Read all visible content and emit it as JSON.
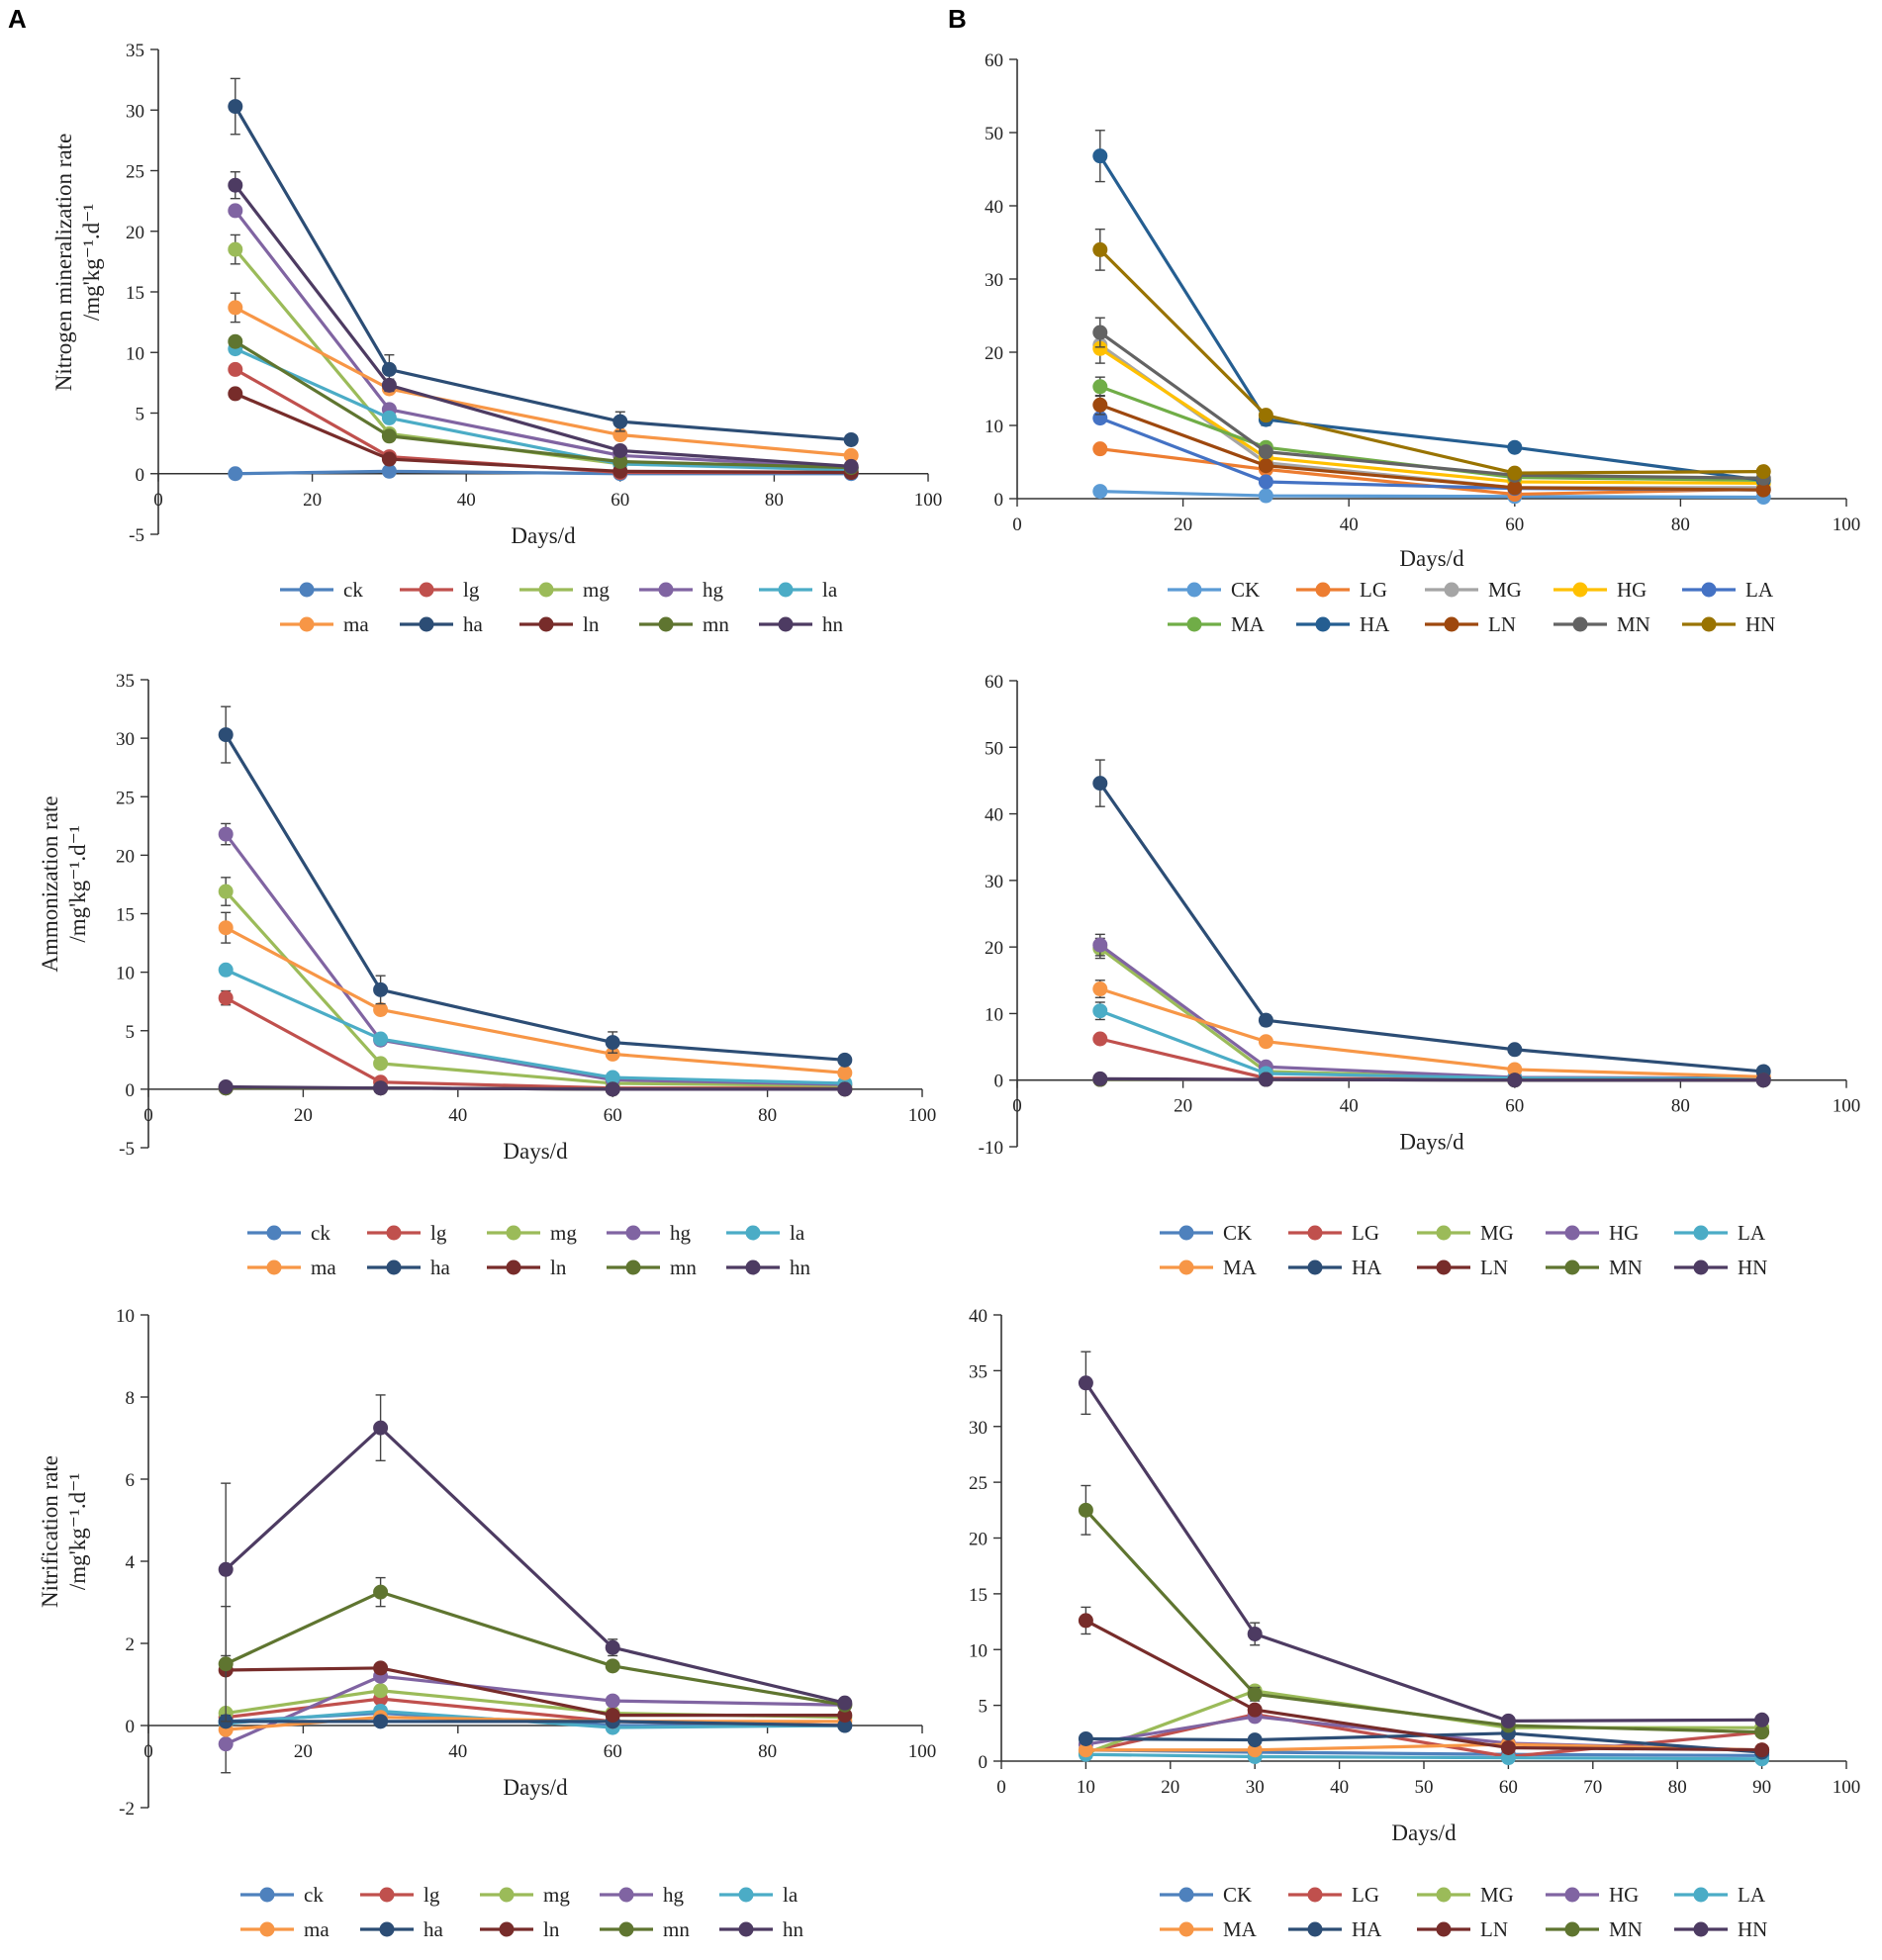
{
  "panel_labels": {
    "A": "A",
    "B": "B"
  },
  "colors": {
    "ck": "#4E81BD",
    "lg": "#C0504D",
    "mg": "#9BBB59",
    "hg": "#8064A2",
    "la": "#4BACC6",
    "ma": "#F79646",
    "ha": "#2C4D75",
    "ln": "#772C2A",
    "mn": "#5F7530",
    "hn": "#4D3B62",
    "CK_b1": "#5B9BD5",
    "LG_b1": "#ED7D31",
    "MG_b1": "#A5A5A5",
    "HG_b1": "#FFC000",
    "LA_b1": "#4472C4",
    "MA_b1": "#70AD47",
    "HA_b1": "#255E91",
    "LN_b1": "#9E480E",
    "MN_b1": "#636363",
    "HN_b1": "#997300"
  },
  "chart_data": [
    {
      "id": "A1",
      "type": "line",
      "ylabel_lines": [
        "Nitrogen mineralization rate",
        "/mg'kg⁻¹.d⁻¹"
      ],
      "xlabel": "Days/d",
      "xlim": [
        0,
        100
      ],
      "xticks": [
        0,
        20,
        40,
        60,
        80,
        100
      ],
      "ylim": [
        -5,
        35
      ],
      "yticks": [
        -5,
        0,
        5,
        10,
        15,
        20,
        25,
        30,
        35
      ],
      "x": [
        10,
        30,
        60,
        90
      ],
      "legend_rows": [
        [
          "ck",
          "lg",
          "mg",
          "hg",
          "la"
        ],
        [
          "ma",
          "ha",
          "ln",
          "mn",
          "hn"
        ]
      ],
      "series": [
        {
          "name": "ck",
          "color_key": "ck",
          "values": [
            0.0,
            0.2,
            0.0,
            0.0
          ]
        },
        {
          "name": "lg",
          "color_key": "lg",
          "values": [
            8.6,
            1.4,
            0.1,
            0.1
          ]
        },
        {
          "name": "mg",
          "color_key": "mg",
          "values": [
            18.5,
            3.3,
            0.8,
            0.4
          ],
          "err": [
            1.2,
            0.4,
            0,
            0
          ]
        },
        {
          "name": "hg",
          "color_key": "hg",
          "values": [
            21.7,
            5.3,
            1.5,
            0.5
          ]
        },
        {
          "name": "la",
          "color_key": "la",
          "values": [
            10.3,
            4.6,
            0.8,
            0.3
          ]
        },
        {
          "name": "ma",
          "color_key": "ma",
          "values": [
            13.7,
            7.0,
            3.2,
            1.5
          ],
          "err": [
            1.2,
            0,
            0,
            0
          ]
        },
        {
          "name": "ha",
          "color_key": "ha",
          "values": [
            30.3,
            8.6,
            4.3,
            2.8
          ],
          "err": [
            2.3,
            1.2,
            0.8,
            0
          ]
        },
        {
          "name": "ln",
          "color_key": "ln",
          "values": [
            6.6,
            1.2,
            0.2,
            0.1
          ]
        },
        {
          "name": "mn",
          "color_key": "mn",
          "values": [
            10.9,
            3.1,
            1.0,
            0.5
          ]
        },
        {
          "name": "hn",
          "color_key": "hn",
          "values": [
            23.8,
            7.3,
            1.9,
            0.6
          ],
          "err": [
            1.1,
            0.5,
            0,
            0
          ]
        }
      ]
    },
    {
      "id": "B1",
      "type": "line",
      "ylabel_lines": [],
      "xlabel": "Days/d",
      "xlim": [
        0,
        100
      ],
      "xticks": [
        0,
        20,
        40,
        60,
        80,
        100
      ],
      "ylim": [
        0,
        60
      ],
      "yticks": [
        0,
        10,
        20,
        30,
        40,
        50,
        60
      ],
      "x": [
        10,
        30,
        60,
        90
      ],
      "legend_rows": [
        [
          "CK",
          "LG",
          "MG",
          "HG",
          "LA"
        ],
        [
          "MA",
          "HA",
          "LN",
          "MN",
          "HN"
        ]
      ],
      "series": [
        {
          "name": "CK",
          "color_key": "CK_b1",
          "values": [
            1.0,
            0.4,
            0.3,
            0.2
          ]
        },
        {
          "name": "LG",
          "color_key": "LG_b1",
          "values": [
            6.8,
            4.0,
            0.6,
            1.3
          ]
        },
        {
          "name": "MG",
          "color_key": "MG_b1",
          "values": [
            21.0,
            4.9,
            1.5,
            1.5
          ]
        },
        {
          "name": "HG",
          "color_key": "HG_b1",
          "values": [
            20.5,
            5.6,
            2.3,
            2.1
          ],
          "err": [
            2.0,
            0,
            0,
            0
          ]
        },
        {
          "name": "LA",
          "color_key": "LA_b1",
          "values": [
            11.0,
            2.3,
            1.4,
            1.2
          ]
        },
        {
          "name": "MA",
          "color_key": "MA_b1",
          "values": [
            15.3,
            7.0,
            2.9,
            2.5
          ],
          "err": [
            1.3,
            0,
            0,
            0
          ]
        },
        {
          "name": "HA",
          "color_key": "HA_b1",
          "values": [
            46.8,
            10.8,
            7.0,
            2.5
          ],
          "err": [
            3.5,
            0.8,
            0,
            0
          ]
        },
        {
          "name": "LN",
          "color_key": "LN_b1",
          "values": [
            12.8,
            4.5,
            1.5,
            1.2
          ],
          "err": [
            1.3,
            0,
            0,
            0
          ]
        },
        {
          "name": "MN",
          "color_key": "MN_b1",
          "values": [
            22.7,
            6.4,
            3.2,
            2.8
          ],
          "err": [
            2.0,
            0,
            0,
            0
          ]
        },
        {
          "name": "HN",
          "color_key": "HN_b1",
          "values": [
            34.0,
            11.4,
            3.5,
            3.7
          ],
          "err": [
            2.8,
            0,
            0,
            0
          ]
        }
      ]
    },
    {
      "id": "A2",
      "type": "line",
      "ylabel_lines": [
        "Ammonization rate",
        "/mg'kg⁻¹.d⁻¹"
      ],
      "xlabel": "Days/d",
      "xlim": [
        0,
        100
      ],
      "xticks": [
        0,
        20,
        40,
        60,
        80,
        100
      ],
      "ylim": [
        -5,
        35
      ],
      "yticks": [
        -5,
        0,
        5,
        10,
        15,
        20,
        25,
        30,
        35
      ],
      "x": [
        10,
        30,
        60,
        90
      ],
      "legend_rows": [
        [
          "ck",
          "lg",
          "mg",
          "hg",
          "la"
        ],
        [
          "ma",
          "ha",
          "ln",
          "mn",
          "hn"
        ]
      ],
      "series": [
        {
          "name": "ck",
          "color_key": "ck",
          "values": [
            0.1,
            0.1,
            0.0,
            0.0
          ]
        },
        {
          "name": "lg",
          "color_key": "lg",
          "values": [
            7.8,
            0.6,
            0.1,
            0.1
          ],
          "err": [
            0.6,
            0,
            0,
            0
          ]
        },
        {
          "name": "mg",
          "color_key": "mg",
          "values": [
            16.9,
            2.2,
            0.5,
            0.3
          ],
          "err": [
            1.2,
            0,
            0,
            0
          ]
        },
        {
          "name": "hg",
          "color_key": "hg",
          "values": [
            21.8,
            4.2,
            0.8,
            0.4
          ],
          "err": [
            0.9,
            0,
            0,
            0
          ]
        },
        {
          "name": "la",
          "color_key": "la",
          "values": [
            10.2,
            4.3,
            1.0,
            0.5
          ]
        },
        {
          "name": "ma",
          "color_key": "ma",
          "values": [
            13.8,
            6.8,
            3.0,
            1.4
          ],
          "err": [
            1.3,
            0,
            0,
            0
          ]
        },
        {
          "name": "ha",
          "color_key": "ha",
          "values": [
            30.3,
            8.5,
            4.0,
            2.5
          ],
          "err": [
            2.4,
            1.2,
            0.9,
            0
          ]
        },
        {
          "name": "ln",
          "color_key": "ln",
          "values": [
            0.1,
            0.1,
            0.0,
            0.0
          ]
        },
        {
          "name": "mn",
          "color_key": "mn",
          "values": [
            0.1,
            0.1,
            0.0,
            0.0
          ]
        },
        {
          "name": "hn",
          "color_key": "hn",
          "values": [
            0.2,
            0.1,
            0.0,
            0.0
          ]
        }
      ]
    },
    {
      "id": "B2",
      "type": "line",
      "ylabel_lines": [],
      "xlabel": "Days/d",
      "xlim": [
        0,
        100
      ],
      "xticks": [
        0,
        20,
        40,
        60,
        80,
        100
      ],
      "ylim": [
        -10,
        60
      ],
      "yticks": [
        -10,
        0,
        10,
        20,
        30,
        40,
        50,
        60
      ],
      "x": [
        10,
        30,
        60,
        90
      ],
      "legend_rows": [
        [
          "CK",
          "LG",
          "MG",
          "HG",
          "LA"
        ],
        [
          "MA",
          "HA",
          "LN",
          "MN",
          "HN"
        ]
      ],
      "series": [
        {
          "name": "CK",
          "color_key": "ck",
          "values": [
            0.1,
            0.1,
            0.0,
            0.0
          ]
        },
        {
          "name": "LG",
          "color_key": "lg",
          "values": [
            6.2,
            0.3,
            0.1,
            0.1
          ]
        },
        {
          "name": "MG",
          "color_key": "mg",
          "values": [
            19.8,
            1.3,
            0.3,
            0.2
          ],
          "err": [
            1.5,
            0,
            0,
            0
          ]
        },
        {
          "name": "HG",
          "color_key": "hg",
          "values": [
            20.3,
            2.0,
            0.4,
            0.3
          ],
          "err": [
            1.6,
            0,
            0,
            0
          ]
        },
        {
          "name": "LA",
          "color_key": "la",
          "values": [
            10.4,
            1.0,
            0.3,
            0.2
          ],
          "err": [
            1.3,
            0,
            0,
            0
          ]
        },
        {
          "name": "MA",
          "color_key": "ma",
          "values": [
            13.7,
            5.8,
            1.6,
            0.5
          ],
          "err": [
            1.3,
            0,
            0,
            0
          ]
        },
        {
          "name": "HA",
          "color_key": "ha",
          "values": [
            44.6,
            9.0,
            4.6,
            1.3
          ],
          "err": [
            3.5,
            0.8,
            0,
            0
          ]
        },
        {
          "name": "LN",
          "color_key": "ln",
          "values": [
            0.1,
            0.1,
            0.0,
            0.0
          ]
        },
        {
          "name": "MN",
          "color_key": "mn",
          "values": [
            0.1,
            0.1,
            0.0,
            0.0
          ]
        },
        {
          "name": "HN",
          "color_key": "hn",
          "values": [
            0.2,
            0.1,
            0.0,
            0.0
          ]
        }
      ]
    },
    {
      "id": "A3",
      "type": "line",
      "ylabel_lines": [
        "Nitrification rate",
        "/mg'kg⁻¹.d⁻¹"
      ],
      "xlabel": "Days/d",
      "xlim": [
        0,
        100
      ],
      "xticks": [
        0,
        20,
        40,
        60,
        80,
        100
      ],
      "ylim": [
        -2,
        10
      ],
      "yticks": [
        -2,
        0,
        2,
        4,
        6,
        8,
        10
      ],
      "x": [
        10,
        30,
        60,
        90
      ],
      "legend_rows": [
        [
          "ck",
          "lg",
          "mg",
          "hg",
          "la"
        ],
        [
          "ma",
          "ha",
          "ln",
          "mn",
          "hn"
        ]
      ],
      "series": [
        {
          "name": "ck",
          "color_key": "ck",
          "values": [
            0.1,
            0.3,
            0.0,
            0.0
          ]
        },
        {
          "name": "lg",
          "color_key": "lg",
          "values": [
            0.2,
            0.65,
            0.1,
            0.0
          ]
        },
        {
          "name": "mg",
          "color_key": "mg",
          "values": [
            0.3,
            0.85,
            0.3,
            0.2
          ]
        },
        {
          "name": "hg",
          "color_key": "hg",
          "values": [
            -0.45,
            1.2,
            0.6,
            0.5
          ],
          "err": [
            0.7,
            0,
            0,
            0
          ]
        },
        {
          "name": "la",
          "color_key": "la",
          "values": [
            0.05,
            0.35,
            -0.05,
            0.0
          ]
        },
        {
          "name": "ma",
          "color_key": "ma",
          "values": [
            -0.1,
            0.2,
            0.1,
            0.1
          ]
        },
        {
          "name": "ha",
          "color_key": "ha",
          "values": [
            0.1,
            0.1,
            0.1,
            0.0
          ]
        },
        {
          "name": "ln",
          "color_key": "ln",
          "values": [
            1.35,
            1.4,
            0.25,
            0.25
          ]
        },
        {
          "name": "mn",
          "color_key": "mn",
          "values": [
            1.5,
            3.25,
            1.45,
            0.5
          ],
          "err": [
            1.4,
            0.35,
            0,
            0
          ]
        },
        {
          "name": "hn",
          "color_key": "hn",
          "values": [
            3.8,
            7.25,
            1.9,
            0.55
          ],
          "err": [
            2.1,
            0.8,
            0.2,
            0
          ]
        }
      ]
    },
    {
      "id": "B3",
      "type": "line",
      "ylabel_lines": [],
      "xlabel": "Days/d",
      "xlim": [
        0,
        100
      ],
      "xticks": [
        0,
        10,
        20,
        30,
        40,
        50,
        60,
        70,
        80,
        90,
        100
      ],
      "ylim": [
        0,
        40
      ],
      "yticks": [
        0,
        5,
        10,
        15,
        20,
        25,
        30,
        35,
        40
      ],
      "x": [
        10,
        30,
        60,
        90
      ],
      "legend_rows": [
        [
          "CK",
          "LG",
          "MG",
          "HG",
          "LA"
        ],
        [
          "MA",
          "HA",
          "LN",
          "MN",
          "HN"
        ]
      ],
      "series": [
        {
          "name": "CK",
          "color_key": "ck",
          "values": [
            1.0,
            0.8,
            0.6,
            0.5
          ]
        },
        {
          "name": "LG",
          "color_key": "lg",
          "values": [
            0.8,
            4.2,
            0.4,
            2.6
          ]
        },
        {
          "name": "MG",
          "color_key": "mg",
          "values": [
            0.7,
            6.3,
            3.0,
            3.0
          ]
        },
        {
          "name": "HG",
          "color_key": "hg",
          "values": [
            1.5,
            4.0,
            1.6,
            1.0
          ]
        },
        {
          "name": "LA",
          "color_key": "la",
          "values": [
            0.6,
            0.4,
            0.3,
            0.2
          ]
        },
        {
          "name": "MA",
          "color_key": "ma",
          "values": [
            1.0,
            1.0,
            1.5,
            1.0
          ]
        },
        {
          "name": "HA",
          "color_key": "ha",
          "values": [
            2.0,
            1.9,
            2.5,
            0.8
          ]
        },
        {
          "name": "LN",
          "color_key": "ln",
          "values": [
            12.6,
            4.6,
            1.2,
            1.0
          ],
          "err": [
            1.2,
            0,
            0,
            0
          ]
        },
        {
          "name": "MN",
          "color_key": "mn",
          "values": [
            22.5,
            6.0,
            3.2,
            2.6
          ],
          "err": [
            2.2,
            0.6,
            0,
            0
          ]
        },
        {
          "name": "HN",
          "color_key": "hn",
          "values": [
            33.9,
            11.4,
            3.6,
            3.7
          ],
          "err": [
            2.8,
            1.0,
            0,
            0
          ]
        }
      ]
    }
  ]
}
